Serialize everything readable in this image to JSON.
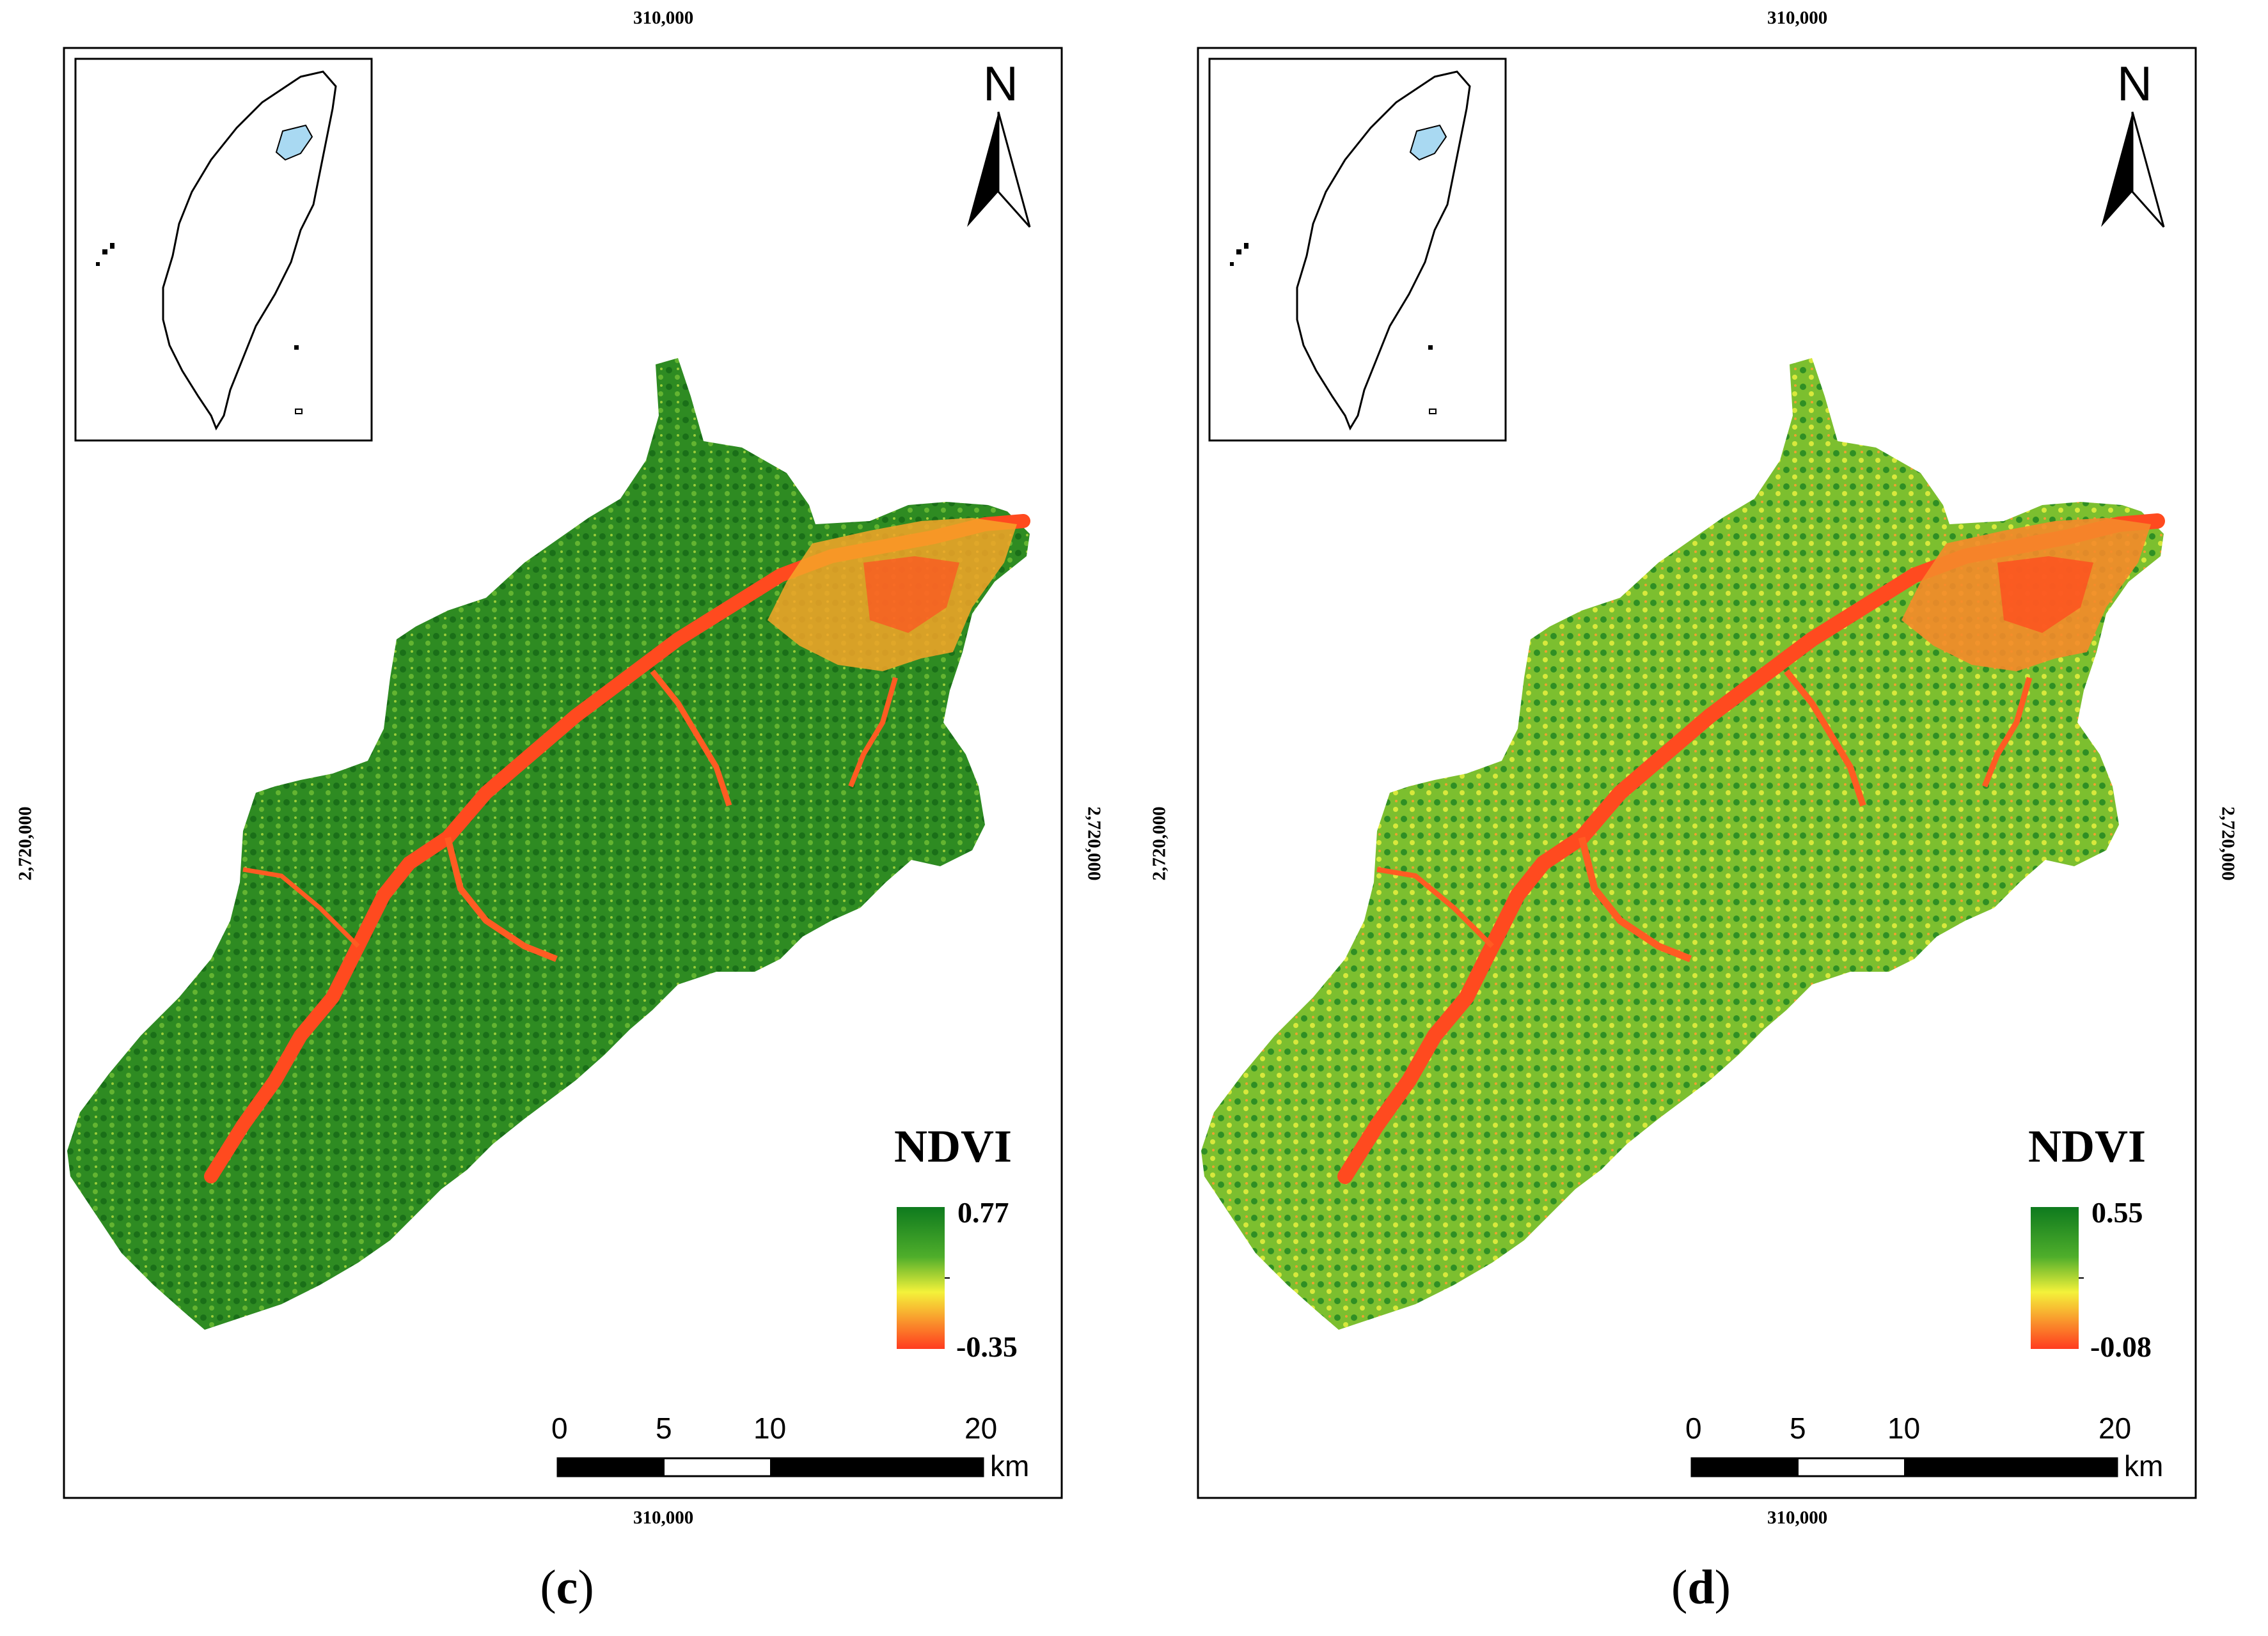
{
  "panels": [
    {
      "id": "c",
      "coord_top": "310,000",
      "coord_bottom": "310,000",
      "coord_left": "2,720,000",
      "coord_right": "2,720,000",
      "north_label": "N",
      "legend_title": "NDVI",
      "legend_max": "0.77",
      "legend_min": "-0.35",
      "scale_ticks": [
        "0",
        "5",
        "10",
        "20"
      ],
      "scale_unit": "km",
      "caption_open": "(",
      "caption_letter": "c",
      "caption_close": ")",
      "colors": {
        "low": "#ff3b1f",
        "mid": "#f4f23a",
        "high": "#0e7a1e",
        "base": "#3f9a2c"
      }
    },
    {
      "id": "d",
      "coord_top": "310,000",
      "coord_bottom": "310,000",
      "coord_left": "2,720,000",
      "coord_right": "2,720,000",
      "north_label": "N",
      "legend_title": "NDVI",
      "legend_max": "0.55",
      "legend_min": "-0.08",
      "scale_ticks": [
        "0",
        "5",
        "10",
        "20"
      ],
      "scale_unit": "km",
      "caption_open": "(",
      "caption_letter": "d",
      "caption_close": ")",
      "colors": {
        "low": "#ff3b1f",
        "mid": "#f4f23a",
        "high": "#0e7a1e",
        "base": "#7dbd2f"
      }
    }
  ]
}
